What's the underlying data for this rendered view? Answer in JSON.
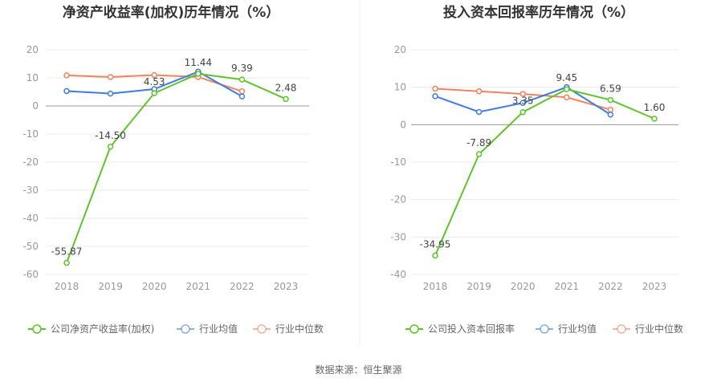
{
  "source": "数据来源：恒生聚源",
  "chart_data": [
    {
      "type": "line",
      "title": "净资产收益率(加权)历年情况（%）",
      "categories": [
        "2018",
        "2019",
        "2020",
        "2021",
        "2022",
        "2023"
      ],
      "ylim": [
        -60,
        20
      ],
      "yticks": [
        20,
        10,
        0,
        -10,
        -20,
        -30,
        -40,
        -50,
        -60
      ],
      "grid": true,
      "legend_position": "bottom",
      "series": [
        {
          "name": "公司净资产收益率(加权)",
          "color": "#5fc42b",
          "values": [
            -55.87,
            -14.5,
            4.53,
            11.44,
            9.39,
            2.48
          ],
          "labels": [
            "-55.87",
            "-14.50",
            "4.53",
            "11.44",
            "9.39",
            "2.48"
          ]
        },
        {
          "name": "行业均值",
          "color": "#3f7be0",
          "values": [
            5.3,
            4.4,
            6.0,
            12.2,
            3.4,
            null
          ]
        },
        {
          "name": "行业中位数",
          "color": "#f0845c",
          "values": [
            10.9,
            10.3,
            11.0,
            10.3,
            5.2,
            null
          ]
        }
      ]
    },
    {
      "type": "line",
      "title": "投入资本回报率历年情况（%）",
      "categories": [
        "2018",
        "2019",
        "2020",
        "2021",
        "2022",
        "2023"
      ],
      "ylim": [
        -40,
        20
      ],
      "yticks": [
        20,
        10,
        0,
        -10,
        -20,
        -30,
        -40
      ],
      "grid": true,
      "legend_position": "bottom",
      "series": [
        {
          "name": "公司投入资本回报率",
          "color": "#5fc42b",
          "values": [
            -34.95,
            -7.89,
            3.35,
            9.45,
            6.59,
            1.6
          ],
          "labels": [
            "-34.95",
            "-7.89",
            "3.35",
            "9.45",
            "6.59",
            "1.60"
          ]
        },
        {
          "name": "行业均值",
          "color": "#3f7be0",
          "values": [
            7.6,
            3.4,
            5.8,
            10.0,
            2.7,
            null
          ]
        },
        {
          "name": "行业中位数",
          "color": "#f0845c",
          "values": [
            9.6,
            8.9,
            8.2,
            7.3,
            4.0,
            null
          ]
        }
      ]
    }
  ]
}
